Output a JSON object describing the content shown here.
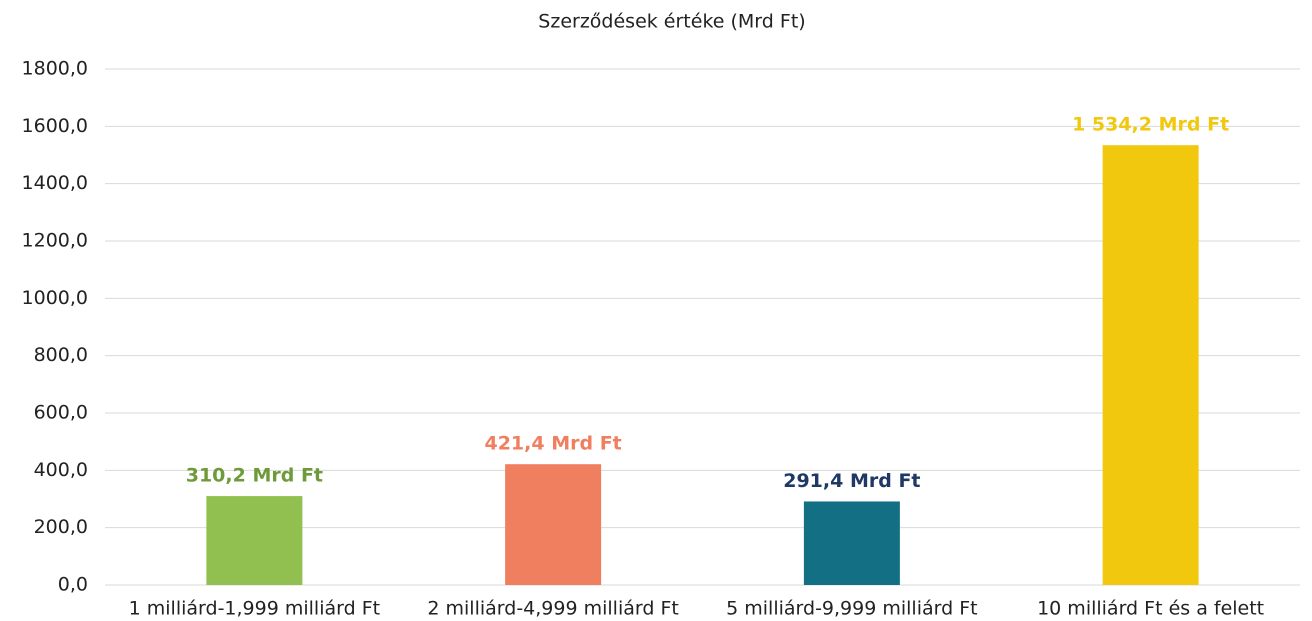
{
  "chart_data": {
    "type": "bar",
    "title": "Szerződések értéke (Mrd Ft)",
    "categories": [
      "1 milliárd-1,999 milliárd Ft",
      "2 milliárd-4,999 milliárd Ft",
      "5 milliárd-9,999 milliárd Ft",
      "10 milliárd Ft és a felett"
    ],
    "values": [
      310.2,
      421.4,
      291.4,
      1534.2
    ],
    "value_labels": [
      "310,2 Mrd Ft",
      "421,4 Mrd Ft",
      "291,4 Mrd Ft",
      "1 534,2 Mrd Ft"
    ],
    "colors": [
      "#92c050",
      "#f07f5f",
      "#136f84",
      "#f2c80f"
    ],
    "label_colors": [
      "#6e9a3a",
      "#f07f5f",
      "#1f3864",
      "#f2c80f"
    ],
    "ylim": [
      0,
      1800
    ],
    "yticks": [
      {
        "value": 0,
        "label": "0,0"
      },
      {
        "value": 200,
        "label": "200,0"
      },
      {
        "value": 400,
        "label": "400,0"
      },
      {
        "value": 600,
        "label": "600,0"
      },
      {
        "value": 800,
        "label": "800,0"
      },
      {
        "value": 1000,
        "label": "1000,0"
      },
      {
        "value": 1200,
        "label": "1200,0"
      },
      {
        "value": 1400,
        "label": "1400,0"
      },
      {
        "value": 1600,
        "label": "1600,0"
      },
      {
        "value": 1800,
        "label": "1800,0"
      }
    ],
    "grid": true
  }
}
